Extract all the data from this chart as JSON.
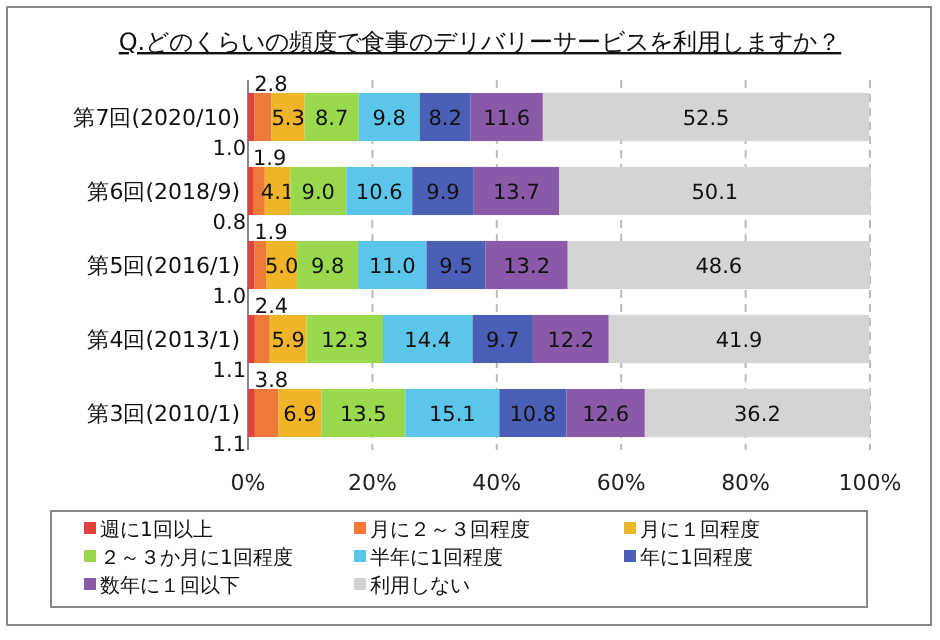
{
  "chart_data": {
    "type": "bar",
    "orientation": "horizontal",
    "stacked": true,
    "title": "Q.どのくらいの頻度で食事のデリバリーサービスを利用しますか？",
    "categories": [
      "第7回(2020/10)",
      "第6回(2018/9)",
      "第5回(2016/1)",
      "第4回(2013/1)",
      "第3回(2010/1)"
    ],
    "series": [
      {
        "name": "週に1回以上",
        "color": "#e0413a",
        "values": [
          1.0,
          0.8,
          1.0,
          1.1,
          1.1
        ],
        "value_labels": [
          "1.0",
          "0.8",
          "1.0",
          "1.1",
          "1.1"
        ]
      },
      {
        "name": "月に２～３回程度",
        "color": "#ee7a3a",
        "values": [
          2.8,
          1.9,
          1.9,
          2.4,
          3.8
        ],
        "value_labels": [
          "2.8",
          "1.9",
          "1.9",
          "2.4",
          "3.8"
        ]
      },
      {
        "name": "月に１回程度",
        "color": "#f0b429",
        "values": [
          5.3,
          4.1,
          5.0,
          5.9,
          6.9
        ],
        "value_labels": [
          "5.3",
          "4.1",
          "5.0",
          "5.9",
          "6.9"
        ]
      },
      {
        "name": "２～３か月に1回程度",
        "color": "#9ad84e",
        "values": [
          8.7,
          9.0,
          9.8,
          12.3,
          13.5
        ],
        "value_labels": [
          "8.7",
          "9.0",
          "9.8",
          "12.3",
          "13.5"
        ]
      },
      {
        "name": "半年に1回程度",
        "color": "#5cc6ea",
        "values": [
          9.8,
          10.6,
          11.0,
          14.4,
          15.1
        ],
        "value_labels": [
          "9.8",
          "10.6",
          "11.0",
          "14.4",
          "15.1"
        ]
      },
      {
        "name": "年に1回程度",
        "color": "#4a5fb5",
        "values": [
          8.2,
          9.9,
          9.5,
          9.7,
          10.8
        ],
        "value_labels": [
          "8.2",
          "9.9",
          "9.5",
          "9.7",
          "10.8"
        ]
      },
      {
        "name": "数年に１回以下",
        "color": "#8a5aa8",
        "values": [
          11.6,
          13.7,
          13.2,
          12.2,
          12.6
        ],
        "value_labels": [
          "11.6",
          "13.7",
          "13.2",
          "12.2",
          "12.6"
        ]
      },
      {
        "name": "利用しない",
        "color": "#d4d4d4",
        "values": [
          52.5,
          50.1,
          48.6,
          41.9,
          36.2
        ],
        "value_labels": [
          "52.5",
          "50.1",
          "48.6",
          "41.9",
          "36.2"
        ]
      }
    ],
    "xlim": [
      0,
      100
    ],
    "xticks": [
      {
        "value": 0,
        "label": "0%"
      },
      {
        "value": 20,
        "label": "20%"
      },
      {
        "value": 40,
        "label": "40%"
      },
      {
        "value": 60,
        "label": "60%"
      },
      {
        "value": 80,
        "label": "80%"
      },
      {
        "value": 100,
        "label": "100%"
      }
    ],
    "grid": "x",
    "legend": "bottom"
  }
}
